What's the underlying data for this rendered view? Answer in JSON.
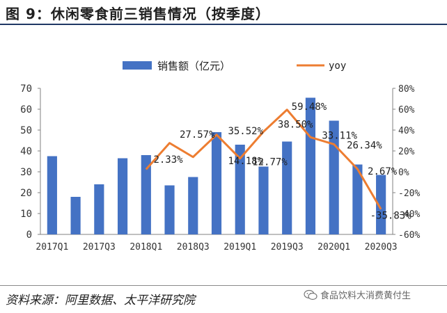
{
  "header": {
    "title": "图 9：休闲零食前三销售情况（按季度）"
  },
  "chart_data": {
    "type": "bar",
    "title": "图 9：休闲零食前三销售情况（按季度）",
    "categories": [
      "2017Q1",
      "2017Q2",
      "2017Q3",
      "2017Q4",
      "2018Q1",
      "2018Q2",
      "2018Q3",
      "2018Q4",
      "2019Q1",
      "2019Q2",
      "2019Q3",
      "2019Q4",
      "2020Q1",
      "2020Q2",
      "2020Q3"
    ],
    "tick_labels": [
      "2017Q1",
      "2017Q3",
      "2018Q1",
      "2018Q3",
      "2019Q1",
      "2019Q3",
      "2020Q1",
      "2020Q3"
    ],
    "series": [
      {
        "name": "销售额（亿元）",
        "type": "bar",
        "axis": "left",
        "color": "#4472c4",
        "values": [
          37.5,
          18,
          24,
          36.5,
          38,
          23.5,
          27.5,
          49,
          43,
          32.5,
          44.5,
          65.5,
          54.5,
          33.5,
          28.5
        ]
      },
      {
        "name": "yoy",
        "type": "line",
        "axis": "right",
        "color": "#ed7d31",
        "values": [
          null,
          null,
          null,
          null,
          2.33,
          27.57,
          14.18,
          35.52,
          12.77,
          38.5,
          59.48,
          33.11,
          26.34,
          2.67,
          -35.83
        ]
      }
    ],
    "data_labels": [
      {
        "index": 5,
        "text": "2.33%"
      },
      {
        "index": 6,
        "text": "27.57%"
      },
      {
        "index": 8,
        "text": "14.18%"
      },
      {
        "index": 8,
        "text": "35.52%"
      },
      {
        "index": 9,
        "text": "12.77%"
      },
      {
        "index": 10,
        "text": "38.50%"
      },
      {
        "index": 11,
        "text": "59.48%"
      },
      {
        "index": 12,
        "text": "33.11%"
      },
      {
        "index": 13,
        "text": "26.34%"
      },
      {
        "index": 14,
        "text": "2.67%"
      },
      {
        "index": 14,
        "text": "-35.83%"
      }
    ],
    "y_left": {
      "ylim": [
        0,
        70
      ],
      "ticks": [
        "0",
        "10",
        "20",
        "30",
        "40",
        "50",
        "60",
        "70"
      ]
    },
    "y_right": {
      "ylim": [
        -60,
        80
      ],
      "ticks": [
        "-60%",
        "-40%",
        "-20%",
        "0%",
        "20%",
        "40%",
        "60%",
        "80%"
      ]
    },
    "legend": {
      "position": "top",
      "bar_label": "销售额（亿元）",
      "line_label": "yoy"
    },
    "grid": false
  },
  "footer": {
    "source": "资料来源：阿里数据、太平洋研究院",
    "watermark": "食品饮料大消费黄付生"
  }
}
